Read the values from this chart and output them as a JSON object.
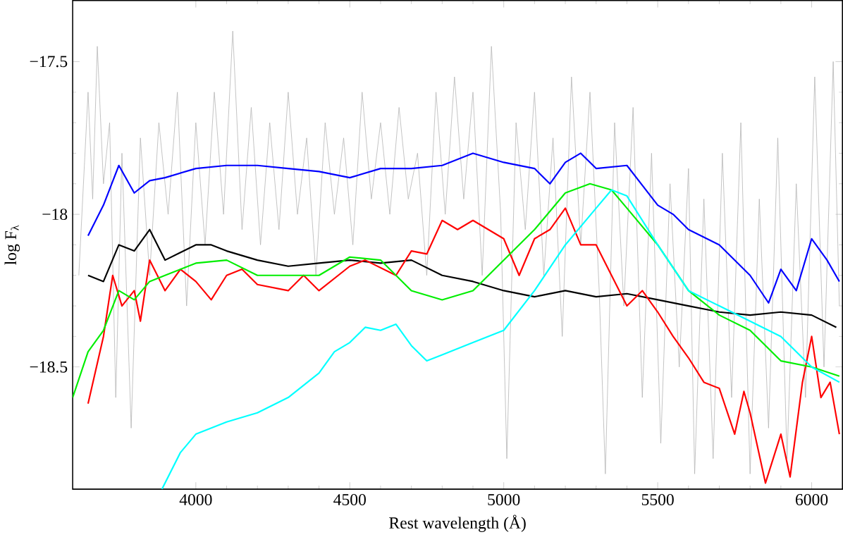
{
  "chart_data": {
    "type": "line",
    "xlabel": "Rest wavelength (Å)",
    "ylabel": "log F$_{λ}$",
    "xlim": [
      3600,
      6100
    ],
    "ylim": [
      -18.9,
      -17.3
    ],
    "xticks": [
      4000,
      4500,
      5000,
      5500,
      6000
    ],
    "yticks": [
      {
        "value": -18.5,
        "label": "−18.5"
      },
      {
        "value": -18,
        "label": "−18"
      },
      {
        "value": -17.5,
        "label": "−17.5"
      }
    ],
    "marker": "none",
    "line_style": "solid",
    "series": [
      {
        "color": "#b4b4b4",
        "x": [
          3620,
          3650,
          3665,
          3680,
          3700,
          3720,
          3740,
          3760,
          3790,
          3820,
          3850,
          3880,
          3910,
          3940,
          3970,
          4000,
          4030,
          4060,
          4090,
          4120,
          4150,
          4180,
          4210,
          4240,
          4270,
          4300,
          4330,
          4360,
          4390,
          4420,
          4450,
          4480,
          4510,
          4540,
          4570,
          4600,
          4630,
          4660,
          4690,
          4720,
          4750,
          4780,
          4810,
          4840,
          4870,
          4900,
          4930,
          4960,
          4990,
          5010,
          5040,
          5070,
          5100,
          5130,
          5160,
          5190,
          5220,
          5250,
          5280,
          5310,
          5330,
          5360,
          5390,
          5420,
          5450,
          5480,
          5510,
          5540,
          5570,
          5600,
          5620,
          5650,
          5680,
          5710,
          5740,
          5770,
          5800,
          5830,
          5860,
          5890,
          5920,
          5950,
          5980,
          6010,
          6040,
          6070,
          6090
        ],
        "values": [
          -18.2,
          -17.6,
          -17.95,
          -17.45,
          -17.9,
          -17.7,
          -18.6,
          -17.8,
          -18.7,
          -17.75,
          -18.2,
          -17.7,
          -18.0,
          -17.6,
          -18.3,
          -17.7,
          -18.1,
          -17.6,
          -18.0,
          -17.4,
          -18.05,
          -17.65,
          -18.1,
          -17.7,
          -18.05,
          -17.6,
          -18.0,
          -17.75,
          -18.2,
          -17.7,
          -18.0,
          -17.75,
          -18.1,
          -17.6,
          -17.95,
          -17.7,
          -18.0,
          -17.65,
          -17.95,
          -17.8,
          -18.2,
          -17.6,
          -18.0,
          -17.55,
          -17.95,
          -17.6,
          -18.2,
          -17.45,
          -18.0,
          -18.8,
          -17.7,
          -18.05,
          -17.6,
          -18.2,
          -17.75,
          -18.4,
          -17.55,
          -18.1,
          -17.6,
          -18.25,
          -18.85,
          -17.7,
          -18.3,
          -17.65,
          -18.6,
          -17.8,
          -18.75,
          -17.9,
          -18.5,
          -17.85,
          -18.85,
          -17.95,
          -18.8,
          -17.8,
          -18.6,
          -17.7,
          -18.85,
          -17.95,
          -18.7,
          -17.75,
          -18.8,
          -17.9,
          -18.6,
          -17.55,
          -18.5,
          -17.5,
          -18.3
        ]
      },
      {
        "color": "#0000ff",
        "x": [
          3650,
          3700,
          3750,
          3800,
          3850,
          3900,
          4000,
          4100,
          4200,
          4300,
          4400,
          4500,
          4600,
          4700,
          4800,
          4900,
          5000,
          5100,
          5150,
          5200,
          5250,
          5300,
          5400,
          5500,
          5550,
          5600,
          5700,
          5800,
          5860,
          5900,
          5950,
          6000,
          6050,
          6090
        ],
        "values": [
          -18.07,
          -17.97,
          -17.84,
          -17.93,
          -17.89,
          -17.88,
          -17.85,
          -17.84,
          -17.84,
          -17.85,
          -17.86,
          -17.88,
          -17.85,
          -17.85,
          -17.84,
          -17.8,
          -17.83,
          -17.85,
          -17.9,
          -17.83,
          -17.8,
          -17.85,
          -17.84,
          -17.97,
          -18.0,
          -18.05,
          -18.1,
          -18.2,
          -18.29,
          -18.18,
          -18.25,
          -18.08,
          -18.15,
          -18.22
        ]
      },
      {
        "color": "#000000",
        "x": [
          3650,
          3700,
          3750,
          3800,
          3850,
          3900,
          4000,
          4050,
          4100,
          4200,
          4300,
          4400,
          4500,
          4600,
          4700,
          4800,
          4900,
          5000,
          5100,
          5200,
          5300,
          5400,
          5500,
          5600,
          5700,
          5800,
          5900,
          6000,
          6080
        ],
        "values": [
          -18.2,
          -18.22,
          -18.1,
          -18.12,
          -18.05,
          -18.15,
          -18.1,
          -18.1,
          -18.12,
          -18.15,
          -18.17,
          -18.16,
          -18.15,
          -18.16,
          -18.15,
          -18.2,
          -18.22,
          -18.25,
          -18.27,
          -18.25,
          -18.27,
          -18.26,
          -18.28,
          -18.3,
          -18.32,
          -18.33,
          -18.32,
          -18.33,
          -18.37
        ]
      },
      {
        "color": "#ff0000",
        "x": [
          3650,
          3700,
          3730,
          3760,
          3800,
          3820,
          3850,
          3900,
          3950,
          4000,
          4050,
          4100,
          4150,
          4200,
          4300,
          4350,
          4400,
          4500,
          4550,
          4650,
          4700,
          4750,
          4800,
          4850,
          4900,
          4950,
          5000,
          5050,
          5100,
          5150,
          5200,
          5250,
          5300,
          5350,
          5400,
          5450,
          5500,
          5550,
          5600,
          5650,
          5700,
          5750,
          5780,
          5800,
          5850,
          5900,
          5930,
          5970,
          6000,
          6030,
          6060,
          6090
        ],
        "values": [
          -18.62,
          -18.4,
          -18.2,
          -18.3,
          -18.25,
          -18.35,
          -18.15,
          -18.25,
          -18.18,
          -18.22,
          -18.28,
          -18.2,
          -18.18,
          -18.23,
          -18.25,
          -18.2,
          -18.25,
          -18.17,
          -18.15,
          -18.2,
          -18.12,
          -18.13,
          -18.02,
          -18.05,
          -18.02,
          -18.05,
          -18.08,
          -18.2,
          -18.08,
          -18.05,
          -17.98,
          -18.1,
          -18.1,
          -18.2,
          -18.3,
          -18.25,
          -18.32,
          -18.4,
          -18.47,
          -18.55,
          -18.57,
          -18.72,
          -18.58,
          -18.65,
          -18.88,
          -18.72,
          -18.86,
          -18.55,
          -18.4,
          -18.6,
          -18.55,
          -18.72
        ]
      },
      {
        "color": "#00ee00",
        "x": [
          3600,
          3650,
          3700,
          3750,
          3800,
          3850,
          3900,
          4000,
          4100,
          4200,
          4300,
          4400,
          4500,
          4600,
          4700,
          4800,
          4900,
          5000,
          5100,
          5200,
          5280,
          5350,
          5400,
          5500,
          5600,
          5700,
          5800,
          5900,
          6000,
          6090
        ],
        "values": [
          -18.6,
          -18.45,
          -18.38,
          -18.25,
          -18.28,
          -18.22,
          -18.2,
          -18.16,
          -18.15,
          -18.2,
          -18.2,
          -18.2,
          -18.14,
          -18.15,
          -18.25,
          -18.28,
          -18.25,
          -18.15,
          -18.05,
          -17.93,
          -17.9,
          -17.92,
          -17.98,
          -18.1,
          -18.25,
          -18.33,
          -18.38,
          -18.48,
          -18.5,
          -18.53
        ]
      },
      {
        "color": "#00ffff",
        "x": [
          3890,
          3950,
          4000,
          4100,
          4200,
          4300,
          4400,
          4450,
          4500,
          4550,
          4600,
          4650,
          4700,
          4750,
          4800,
          4900,
          5000,
          5100,
          5200,
          5300,
          5350,
          5400,
          5500,
          5600,
          5700,
          5800,
          5900,
          6000,
          6090
        ],
        "values": [
          -18.9,
          -18.78,
          -18.72,
          -18.68,
          -18.65,
          -18.6,
          -18.52,
          -18.45,
          -18.42,
          -18.37,
          -18.38,
          -18.36,
          -18.43,
          -18.48,
          -18.46,
          -18.42,
          -18.38,
          -18.25,
          -18.1,
          -17.98,
          -17.92,
          -17.94,
          -18.1,
          -18.25,
          -18.3,
          -18.35,
          -18.4,
          -18.5,
          -18.55
        ]
      }
    ]
  }
}
